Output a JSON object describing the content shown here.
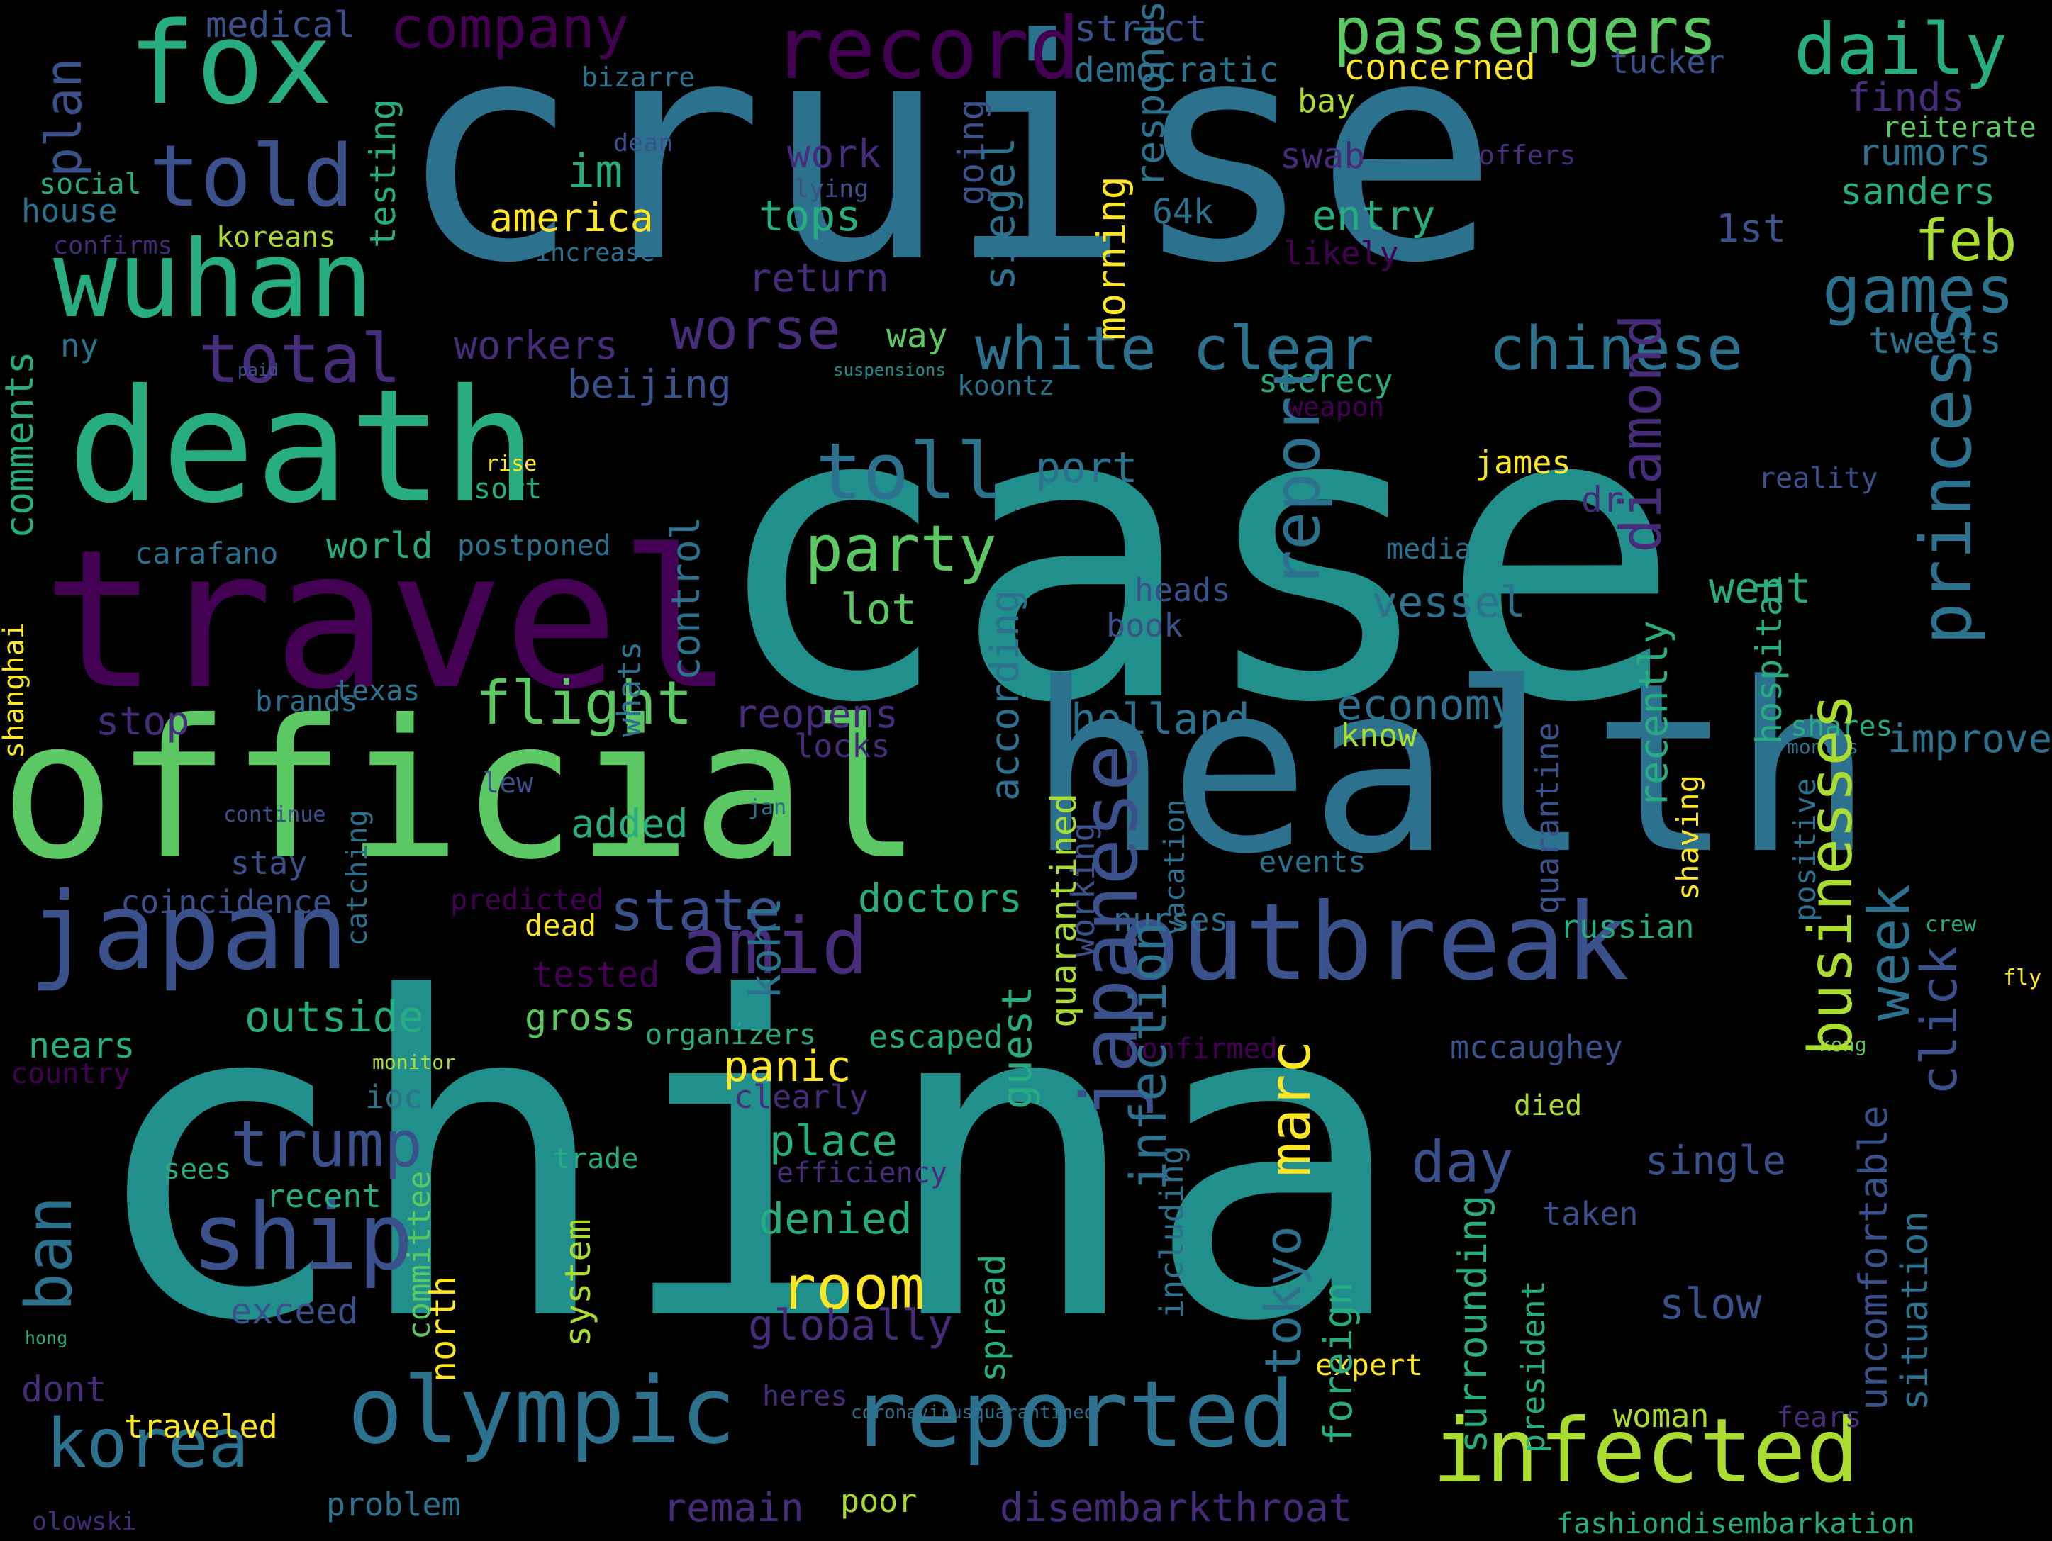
{
  "colors": {
    "background": "#000000",
    "palette": [
      "#440154",
      "#472c7a",
      "#3b518b",
      "#2c718e",
      "#21908d",
      "#27ad81",
      "#5cc863",
      "#aadc32",
      "#fde725"
    ]
  },
  "words": [
    {
      "t": "cruise",
      "c": "#2c718e"
    },
    {
      "t": "case",
      "c": "#21908d"
    },
    {
      "t": "china",
      "c": "#21908d"
    },
    {
      "t": "health",
      "c": "#2c718e"
    },
    {
      "t": "official",
      "c": "#5cc863"
    },
    {
      "t": "travel",
      "c": "#440154"
    },
    {
      "t": "death",
      "c": "#27ad81"
    },
    {
      "t": "fox",
      "c": "#27ad81"
    },
    {
      "t": "wuhan",
      "c": "#27ad81"
    },
    {
      "t": "told",
      "c": "#3b518b"
    },
    {
      "t": "record",
      "c": "#440154"
    },
    {
      "t": "passengers",
      "c": "#5cc863"
    },
    {
      "t": "daily",
      "c": "#27ad81"
    },
    {
      "t": "company",
      "c": "#440154"
    },
    {
      "t": "medical",
      "c": "#3b518b"
    },
    {
      "t": "strict",
      "c": "#3b518b"
    },
    {
      "t": "democratic",
      "c": "#2c718e"
    },
    {
      "t": "concerned",
      "c": "#fde725"
    },
    {
      "t": "tucker",
      "c": "#3b518b"
    },
    {
      "t": "japan",
      "c": "#3b518b"
    },
    {
      "t": "outbreak",
      "c": "#3b518b"
    },
    {
      "t": "olympic",
      "c": "#2c718e"
    },
    {
      "t": "reported",
      "c": "#2c718e"
    },
    {
      "t": "korea",
      "c": "#2c718e"
    },
    {
      "t": "infected",
      "c": "#aadc32"
    },
    {
      "t": "amid",
      "c": "#472c7a"
    },
    {
      "t": "ship",
      "c": "#3b518b"
    },
    {
      "t": "trump",
      "c": "#3b518b"
    },
    {
      "t": "toll",
      "c": "#2c718e"
    },
    {
      "t": "party",
      "c": "#5cc863"
    },
    {
      "t": "total",
      "c": "#472c7a"
    },
    {
      "t": "white clear",
      "c": "#2c718e"
    },
    {
      "t": "chinese",
      "c": "#2c718e"
    },
    {
      "t": "worse",
      "c": "#472c7a"
    },
    {
      "t": "games",
      "c": "#2c718e"
    },
    {
      "t": "feb",
      "c": "#aadc32"
    },
    {
      "t": "america",
      "c": "#fde725"
    },
    {
      "t": "tops",
      "c": "#27ad81"
    },
    {
      "t": "im",
      "c": "#27ad81"
    },
    {
      "t": "work",
      "c": "#472c7a"
    },
    {
      "t": "entry",
      "c": "#27ad81"
    },
    {
      "t": "1st",
      "c": "#3b518b"
    },
    {
      "t": "finds",
      "c": "#472c7a"
    },
    {
      "t": "rumors",
      "c": "#2c718e"
    },
    {
      "t": "sanders",
      "c": "#27ad81"
    },
    {
      "t": "reiterate",
      "c": "#5cc863"
    },
    {
      "t": "tweets",
      "c": "#2c718e"
    },
    {
      "t": "offers",
      "c": "#472c7a"
    },
    {
      "t": "swab",
      "c": "#472c7a"
    },
    {
      "t": "likely",
      "c": "#440154"
    },
    {
      "t": "64k",
      "c": "#2c718e"
    },
    {
      "t": "bay",
      "c": "#aadc32"
    },
    {
      "t": "return",
      "c": "#472c7a"
    },
    {
      "t": "way",
      "c": "#5cc863"
    },
    {
      "t": "koontz",
      "c": "#2c718e"
    },
    {
      "t": "secrecy",
      "c": "#27ad81"
    },
    {
      "t": "weapon",
      "c": "#440154"
    },
    {
      "t": "beijing",
      "c": "#3b518b"
    },
    {
      "t": "workers",
      "c": "#472c7a"
    },
    {
      "t": "flight",
      "c": "#5cc863"
    },
    {
      "t": "state",
      "c": "#3b518b"
    },
    {
      "t": "port",
      "c": "#2c718e"
    },
    {
      "t": "vessel",
      "c": "#2c718e"
    },
    {
      "t": "holland",
      "c": "#2c718e"
    },
    {
      "t": "economy",
      "c": "#2c718e"
    },
    {
      "t": "went",
      "c": "#27ad81"
    },
    {
      "t": "reality",
      "c": "#3b518b"
    },
    {
      "t": "james",
      "c": "#fde725"
    },
    {
      "t": "dr",
      "c": "#472c7a"
    },
    {
      "t": "media",
      "c": "#2c718e"
    },
    {
      "t": "heads",
      "c": "#3b518b"
    },
    {
      "t": "book",
      "c": "#3b518b"
    },
    {
      "t": "lot",
      "c": "#5cc863"
    },
    {
      "t": "world",
      "c": "#27ad81"
    },
    {
      "t": "postponed",
      "c": "#2c718e"
    },
    {
      "t": "carafano",
      "c": "#2c718e"
    },
    {
      "t": "sort",
      "c": "#27ad81"
    },
    {
      "t": "rise",
      "c": "#fde725"
    },
    {
      "t": "reopens",
      "c": "#472c7a"
    },
    {
      "t": "stop",
      "c": "#472c7a"
    },
    {
      "t": "brands",
      "c": "#2c718e"
    },
    {
      "t": "texas",
      "c": "#2c718e"
    },
    {
      "t": "locks",
      "c": "#472c7a"
    },
    {
      "t": "know",
      "c": "#aadc32"
    },
    {
      "t": "shares",
      "c": "#27ad81"
    },
    {
      "t": "improve",
      "c": "#2c718e"
    },
    {
      "t": "months",
      "c": "#2c718e"
    },
    {
      "t": "added",
      "c": "#27ad81"
    },
    {
      "t": "lew",
      "c": "#3b518b"
    },
    {
      "t": "jan",
      "c": "#2c718e"
    },
    {
      "t": "continue",
      "c": "#3b518b"
    },
    {
      "t": "stay",
      "c": "#3b518b"
    },
    {
      "t": "doctors",
      "c": "#27ad81"
    },
    {
      "t": "events",
      "c": "#2c718e"
    },
    {
      "t": "coincidence",
      "c": "#3b518b"
    },
    {
      "t": "predicted",
      "c": "#440154"
    },
    {
      "t": "dead",
      "c": "#fde725"
    },
    {
      "t": "nurses",
      "c": "#2c718e"
    },
    {
      "t": "russian",
      "c": "#27ad81"
    },
    {
      "t": "crew",
      "c": "#27ad81"
    },
    {
      "t": "fly",
      "c": "#fde725"
    },
    {
      "t": "tested",
      "c": "#440154"
    },
    {
      "t": "outside",
      "c": "#27ad81"
    },
    {
      "t": "gross",
      "c": "#5cc863"
    },
    {
      "t": "nears",
      "c": "#27ad81"
    },
    {
      "t": "organizers",
      "c": "#27ad81"
    },
    {
      "t": "escaped",
      "c": "#27ad81"
    },
    {
      "t": "mccaughey",
      "c": "#3b518b"
    },
    {
      "t": "confirmed",
      "c": "#440154"
    },
    {
      "t": "panic",
      "c": "#fde725"
    },
    {
      "t": "clearly",
      "c": "#472c7a"
    },
    {
      "t": "kong",
      "c": "#5cc863"
    },
    {
      "t": "monitor",
      "c": "#aadc32"
    },
    {
      "t": "country",
      "c": "#440154"
    },
    {
      "t": "ioc",
      "c": "#2c718e"
    },
    {
      "t": "died",
      "c": "#aadc32"
    },
    {
      "t": "place",
      "c": "#27ad81"
    },
    {
      "t": "day",
      "c": "#3b518b"
    },
    {
      "t": "single",
      "c": "#3b518b"
    },
    {
      "t": "trade",
      "c": "#27ad81"
    },
    {
      "t": "efficiency",
      "c": "#472c7a"
    },
    {
      "t": "sees",
      "c": "#27ad81"
    },
    {
      "t": "recent",
      "c": "#27ad81"
    },
    {
      "t": "denied",
      "c": "#27ad81"
    },
    {
      "t": "room",
      "c": "#fde725"
    },
    {
      "t": "taken",
      "c": "#3b518b"
    },
    {
      "t": "exceed",
      "c": "#3b518b"
    },
    {
      "t": "slow",
      "c": "#3b518b"
    },
    {
      "t": "globally",
      "c": "#472c7a"
    },
    {
      "t": "hong",
      "c": "#27ad81"
    },
    {
      "t": "dont",
      "c": "#472c7a"
    },
    {
      "t": "expert",
      "c": "#fde725"
    },
    {
      "t": "heres",
      "c": "#472c7a"
    },
    {
      "t": "woman",
      "c": "#aadc32"
    },
    {
      "t": "fears",
      "c": "#472c7a"
    },
    {
      "t": "coronavirusquarantined",
      "c": "#2c718e"
    },
    {
      "t": "traveled",
      "c": "#fde725"
    },
    {
      "t": "problem",
      "c": "#2c718e"
    },
    {
      "t": "poor",
      "c": "#aadc32"
    },
    {
      "t": "remain",
      "c": "#472c7a"
    },
    {
      "t": "disembarkthroat",
      "c": "#472c7a"
    },
    {
      "t": "fashiondisembarkation",
      "c": "#27ad81"
    },
    {
      "t": "olowski",
      "c": "#472c7a"
    },
    {
      "t": "bizarre",
      "c": "#2c718e"
    },
    {
      "t": "dean",
      "c": "#3b518b"
    },
    {
      "t": "lying",
      "c": "#3b518b"
    },
    {
      "t": "social",
      "c": "#27ad81"
    },
    {
      "t": "house",
      "c": "#2c718e"
    },
    {
      "t": "confirms",
      "c": "#472c7a"
    },
    {
      "t": "koreans",
      "c": "#aadc32"
    },
    {
      "t": "increase",
      "c": "#2c718e"
    },
    {
      "t": "ny",
      "c": "#2c718e"
    },
    {
      "t": "paid",
      "c": "#3b518b"
    },
    {
      "t": "suspensions",
      "c": "#21908d"
    },
    {
      "t": "plan",
      "c": "#3b518b"
    },
    {
      "t": "testing",
      "c": "#27ad81"
    },
    {
      "t": "going",
      "c": "#3b518b"
    },
    {
      "t": "siegel",
      "c": "#2c718e"
    },
    {
      "t": "morning",
      "c": "#fde725"
    },
    {
      "t": "responds",
      "c": "#2c718e"
    },
    {
      "t": "comments",
      "c": "#27ad81"
    },
    {
      "t": "report",
      "c": "#2c718e"
    },
    {
      "t": "diamond",
      "c": "#472c7a"
    },
    {
      "t": "princess",
      "c": "#2c718e"
    },
    {
      "t": "control",
      "c": "#2c718e"
    },
    {
      "t": "whats",
      "c": "#2c718e"
    },
    {
      "t": "shanghai",
      "c": "#fde725"
    },
    {
      "t": "according",
      "c": "#2c718e"
    },
    {
      "t": "recently",
      "c": "#27ad81"
    },
    {
      "t": "businesses",
      "c": "#aadc32"
    },
    {
      "t": "week",
      "c": "#2c718e"
    },
    {
      "t": "click",
      "c": "#3b518b"
    },
    {
      "t": "hospital",
      "c": "#27ad81"
    },
    {
      "t": "quarantine",
      "c": "#3b518b"
    },
    {
      "t": "shaving",
      "c": "#fde725"
    },
    {
      "t": "positive",
      "c": "#2c718e"
    },
    {
      "t": "catching",
      "c": "#2c718e"
    },
    {
      "t": "working",
      "c": "#3b518b"
    },
    {
      "t": "vacation",
      "c": "#2c718e"
    },
    {
      "t": "japanese",
      "c": "#3b518b"
    },
    {
      "t": "guest",
      "c": "#27ad81"
    },
    {
      "t": "quarantined",
      "c": "#aadc32"
    },
    {
      "t": "marc",
      "c": "#fde725"
    },
    {
      "t": "tokyo",
      "c": "#2c718e"
    },
    {
      "t": "spread",
      "c": "#27ad81"
    },
    {
      "t": "infection",
      "c": "#2c718e"
    },
    {
      "t": "kohl",
      "c": "#2c718e"
    },
    {
      "t": "system",
      "c": "#aadc32"
    },
    {
      "t": "committee",
      "c": "#5cc863"
    },
    {
      "t": "north",
      "c": "#fde725"
    },
    {
      "t": "ban",
      "c": "#2c718e"
    },
    {
      "t": "including",
      "c": "#2c718e"
    },
    {
      "t": "foreign",
      "c": "#27ad81"
    },
    {
      "t": "surrounding",
      "c": "#27ad81"
    },
    {
      "t": "president",
      "c": "#27ad81"
    },
    {
      "t": "uncomfortable",
      "c": "#3b518b"
    },
    {
      "t": "situation",
      "c": "#2c718e"
    }
  ]
}
